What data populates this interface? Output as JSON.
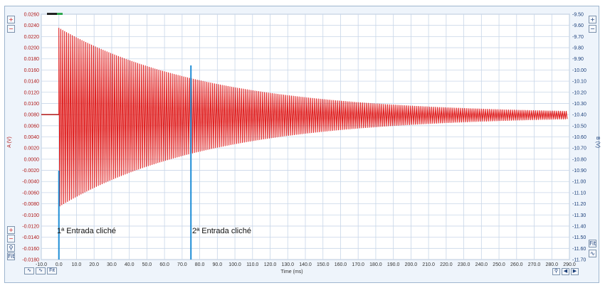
{
  "chart_data": {
    "type": "line",
    "xlabel": "Time (ms)",
    "ylabel_left": "A (V)",
    "ylabel_right": "B (V)",
    "xlim": [
      -10.0,
      290.0
    ],
    "ylim_left": [
      -0.018,
      0.026
    ],
    "ylim_right": [
      -11.7,
      -9.5
    ],
    "x_ticks": [
      "-10.0",
      "0.0",
      "10.0",
      "20.0",
      "30.0",
      "40.0",
      "50.0",
      "60.0",
      "70.0",
      "80.0",
      "90.0",
      "100.0",
      "110.0",
      "120.0",
      "130.0",
      "140.0",
      "150.0",
      "160.0",
      "170.0",
      "180.0",
      "190.0",
      "200.0",
      "210.0",
      "220.0",
      "230.0",
      "240.0",
      "250.0",
      "260.0",
      "270.0",
      "280.0",
      "290.0"
    ],
    "y_ticks_left": [
      "0.0260",
      "0.0240",
      "0.0220",
      "0.0200",
      "0.0180",
      "0.0160",
      "0.0140",
      "0.0120",
      "0.0100",
      "0.0080",
      "0.0060",
      "0.0040",
      "0.0020",
      "0.0000",
      "-0.0020",
      "-0.0040",
      "-0.0060",
      "-0.0080",
      "-0.0100",
      "-0.0120",
      "-0.0140",
      "-0.0160",
      "-0.0180"
    ],
    "y_ticks_right": [
      "-9.50",
      "-9.60",
      "-9.70",
      "-9.80",
      "-9.90",
      "-10.00",
      "-10.10",
      "-10.20",
      "-10.30",
      "-10.40",
      "-10.50",
      "-10.60",
      "-10.70",
      "-10.80",
      "-10.90",
      "-11.00",
      "-11.10",
      "-11.20",
      "-11.30",
      "-11.40",
      "-11.50",
      "-11.60",
      "-11.70"
    ],
    "grid": true,
    "series": [
      {
        "channel": "A",
        "color": "#e02020",
        "baseline": 0.008,
        "onset_x": 0.0,
        "peak_max": 0.0235,
        "peak_min": -0.0085,
        "end_max": 0.0082,
        "end_min": 0.0074
      }
    ],
    "annotations": [
      {
        "x": 0.0,
        "label": "1ª Entrada cliché"
      },
      {
        "x": 75.0,
        "label": "2ª Entrada cliché"
      }
    ]
  },
  "icons": {
    "left_top": [
      "add-icon",
      "remove-icon"
    ],
    "right_top": [
      "add-icon",
      "remove-icon"
    ],
    "left_bottom": [
      "add-icon",
      "remove-icon",
      "zoom-icon",
      "fit-icon"
    ],
    "right_bottom": [
      "fit-icon",
      "waveform-icon"
    ],
    "bottom_left": [
      "waveform-mode-icon",
      "waveform-mode-icon",
      "fit-icon"
    ],
    "bottom_right": [
      "zoom-icon",
      "arrow-left-icon",
      "arrow-right-icon"
    ]
  },
  "controls": {
    "fit_label": "Fit"
  },
  "colors": {
    "grid": "#c8d6e8",
    "trace": "#e02020",
    "annotation_line": "#1f8ed6",
    "axis_text_left": "#b01818",
    "axis_text_right": "#1b3f7a"
  }
}
